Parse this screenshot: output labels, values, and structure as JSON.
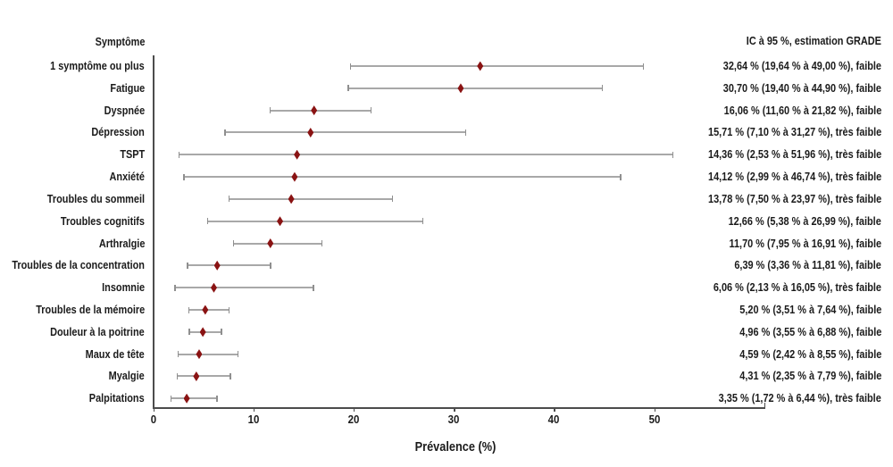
{
  "colors": {
    "marker": "#8a1313",
    "error_bar": "#a8a8a8",
    "error_bar_cap": "#8f8f8f",
    "axis": "#4c4c4c",
    "text": "#1b1b1b",
    "background": "#ffffff"
  },
  "chart_data": {
    "type": "scatter",
    "plot_style": "forest",
    "title": "",
    "left_header": "Symptôme",
    "right_header": "IC à 95 %, estimation GRADE",
    "xlabel": "Prévalence (%)",
    "xlim": [
      0,
      61
    ],
    "xticks": [
      0,
      10,
      20,
      30,
      40,
      50
    ],
    "grid": false,
    "legend": false,
    "rows": [
      {
        "label": "1 symptôme ou plus",
        "mean": 32.64,
        "low": 19.64,
        "high": 49.0,
        "grade": "faible",
        "ci_text": "32,64 % (19,64 % à 49,00 %), faible"
      },
      {
        "label": "Fatigue",
        "mean": 30.7,
        "low": 19.4,
        "high": 44.9,
        "grade": "faible",
        "ci_text": "30,70 % (19,40 % à 44,90 %), faible"
      },
      {
        "label": "Dyspnée",
        "mean": 16.06,
        "low": 11.6,
        "high": 21.82,
        "grade": "faible",
        "ci_text": "16,06 % (11,60 % à 21,82 %), faible"
      },
      {
        "label": "Dépression",
        "mean": 15.71,
        "low": 7.1,
        "high": 31.27,
        "grade": "très faible",
        "ci_text": "15,71 % (7,10 % à 31,27 %), très faible"
      },
      {
        "label": "TSPT",
        "mean": 14.36,
        "low": 2.53,
        "high": 51.96,
        "grade": "très faible",
        "ci_text": "14,36 % (2,53 % à 51,96 %), très faible"
      },
      {
        "label": "Anxiété",
        "mean": 14.12,
        "low": 2.99,
        "high": 46.74,
        "grade": "très faible",
        "ci_text": "14,12 % (2,99 % à 46,74 %), très faible"
      },
      {
        "label": "Troubles du sommeil",
        "mean": 13.78,
        "low": 7.5,
        "high": 23.97,
        "grade": "très faible",
        "ci_text": "13,78 % (7,50 % à 23,97 %), très faible"
      },
      {
        "label": "Troubles cognitifs",
        "mean": 12.66,
        "low": 5.38,
        "high": 26.99,
        "grade": "faible",
        "ci_text": "12,66 % (5,38 % à 26,99 %), faible"
      },
      {
        "label": "Arthralgie",
        "mean": 11.7,
        "low": 7.95,
        "high": 16.91,
        "grade": "faible",
        "ci_text": "11,70 % (7,95 % à 16,91 %), faible"
      },
      {
        "label": "Troubles de la concentration",
        "mean": 6.39,
        "low": 3.36,
        "high": 11.81,
        "grade": "faible",
        "ci_text": "6,39 % (3,36 % à 11,81 %), faible"
      },
      {
        "label": "Insomnie",
        "mean": 6.06,
        "low": 2.13,
        "high": 16.05,
        "grade": "très faible",
        "ci_text": "6,06 % (2,13 % à 16,05 %), très faible"
      },
      {
        "label": "Troubles de la mémoire",
        "mean": 5.2,
        "low": 3.51,
        "high": 7.64,
        "grade": "faible",
        "ci_text": "5,20 % (3,51 % à 7,64 %), faible"
      },
      {
        "label": "Douleur à la poitrine",
        "mean": 4.96,
        "low": 3.55,
        "high": 6.88,
        "grade": "faible",
        "ci_text": "4,96 % (3,55 % à 6,88 %), faible"
      },
      {
        "label": "Maux de tête",
        "mean": 4.59,
        "low": 2.42,
        "high": 8.55,
        "grade": "faible",
        "ci_text": "4,59 % (2,42 % à 8,55 %), faible"
      },
      {
        "label": "Myalgie",
        "mean": 4.31,
        "low": 2.35,
        "high": 7.79,
        "grade": "faible",
        "ci_text": "4,31 % (2,35 % à 7,79 %), faible"
      },
      {
        "label": "Palpitations",
        "mean": 3.35,
        "low": 1.72,
        "high": 6.44,
        "grade": "très faible",
        "ci_text": "3,35 % (1,72 % à 6,44 %), très faible"
      }
    ]
  }
}
